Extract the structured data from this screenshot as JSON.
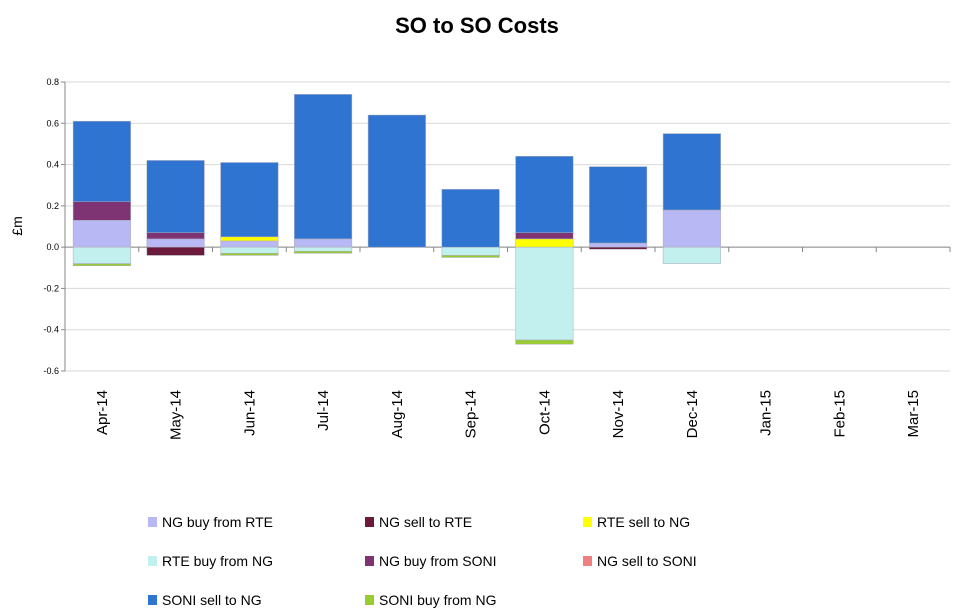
{
  "chart_data": {
    "type": "bar",
    "stacked": true,
    "title": "SO to SO Costs",
    "y_label": "£m",
    "categories": [
      "Apr-14",
      "May-14",
      "Jun-14",
      "Jul-14",
      "Aug-14",
      "Sep-14",
      "Oct-14",
      "Nov-14",
      "Dec-14",
      "Jan-15",
      "Feb-15",
      "Mar-15"
    ],
    "series": [
      {
        "name": "NG buy from RTE",
        "color": "#b8b8f4",
        "values": [
          0.13,
          0.04,
          0.03,
          0.04,
          0,
          0,
          0,
          0.02,
          0.18,
          null,
          null,
          null
        ]
      },
      {
        "name": "NG sell to RTE",
        "color": "#6b1a3c",
        "values": [
          0,
          -0.04,
          0,
          0,
          0,
          0,
          0,
          -0.01,
          0,
          null,
          null,
          null
        ]
      },
      {
        "name": "RTE sell to NG",
        "color": "#ffff00",
        "values": [
          0,
          0,
          0.02,
          0,
          0,
          0,
          0.04,
          0,
          0,
          null,
          null,
          null
        ]
      },
      {
        "name": "RTE buy from NG",
        "color": "#c2f0ee",
        "values": [
          -0.08,
          0,
          -0.03,
          -0.02,
          0,
          -0.04,
          -0.45,
          0,
          -0.08,
          null,
          null,
          null
        ]
      },
      {
        "name": "NG buy from SONI",
        "color": "#7e3372",
        "values": [
          0.09,
          0.03,
          0,
          0,
          0,
          0,
          0.03,
          0,
          0,
          null,
          null,
          null
        ]
      },
      {
        "name": "NG sell to SONI",
        "color": "#f08080",
        "values": [
          0,
          0,
          0,
          0,
          0,
          0,
          0,
          0,
          0,
          null,
          null,
          null
        ]
      },
      {
        "name": "SONI sell to NG",
        "color": "#2f74d0",
        "values": [
          0.39,
          0.35,
          0.36,
          0.7,
          0.64,
          0.28,
          0.37,
          0.37,
          0.37,
          null,
          null,
          null
        ]
      },
      {
        "name": "SONI buy from NG",
        "color": "#99cc33",
        "values": [
          -0.01,
          0,
          -0.01,
          -0.01,
          0,
          -0.01,
          -0.02,
          0,
          0,
          null,
          null,
          null
        ]
      }
    ],
    "ylim": [
      -0.6,
      0.8
    ],
    "yticks": [
      -0.6,
      -0.4,
      -0.2,
      {
        "value": 0,
        "label": "0.0"
      },
      0.2,
      0.4,
      0.6,
      0.8
    ],
    "grid": true
  }
}
